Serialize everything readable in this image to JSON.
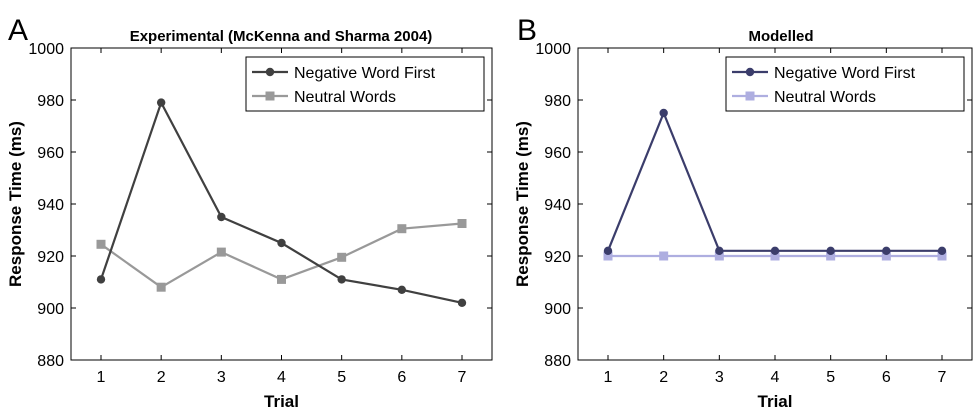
{
  "chart_data": [
    {
      "panel_label": "A",
      "type": "line",
      "title": "Experimental (McKenna and Sharma 2004)",
      "xlabel": "Trial",
      "ylabel": "Response Time (ms)",
      "x": [
        1,
        2,
        3,
        4,
        5,
        6,
        7
      ],
      "xticks": [
        "1",
        "2",
        "3",
        "4",
        "5",
        "6",
        "7"
      ],
      "ylim": [
        880,
        1000
      ],
      "yticks": [
        "880",
        "900",
        "920",
        "940",
        "960",
        "980",
        "1000"
      ],
      "grid": false,
      "legend_position": "top-right",
      "series": [
        {
          "name": "Negative Word First",
          "marker": "circle",
          "color": "#404040",
          "values": [
            911,
            979,
            935,
            925,
            911,
            907,
            902
          ]
        },
        {
          "name": "Neutral Words",
          "marker": "square",
          "color": "#999999",
          "values": [
            924.5,
            908,
            921.5,
            911,
            919.5,
            930.5,
            932.5
          ]
        }
      ]
    },
    {
      "panel_label": "B",
      "type": "line",
      "title": "Modelled",
      "xlabel": "Trial",
      "ylabel": "Response Time (ms)",
      "x": [
        1,
        2,
        3,
        4,
        5,
        6,
        7
      ],
      "xticks": [
        "1",
        "2",
        "3",
        "4",
        "5",
        "6",
        "7"
      ],
      "ylim": [
        880,
        1000
      ],
      "yticks": [
        "880",
        "900",
        "920",
        "940",
        "960",
        "980",
        "1000"
      ],
      "grid": false,
      "legend_position": "top-right",
      "series": [
        {
          "name": "Negative Word First",
          "marker": "circle",
          "color": "#3b3d6b",
          "values": [
            922,
            975,
            922,
            922,
            922,
            922,
            922
          ]
        },
        {
          "name": "Neutral Words",
          "marker": "square",
          "color": "#aeaee0",
          "values": [
            920,
            920,
            920,
            920,
            920,
            920,
            920
          ]
        }
      ]
    }
  ]
}
